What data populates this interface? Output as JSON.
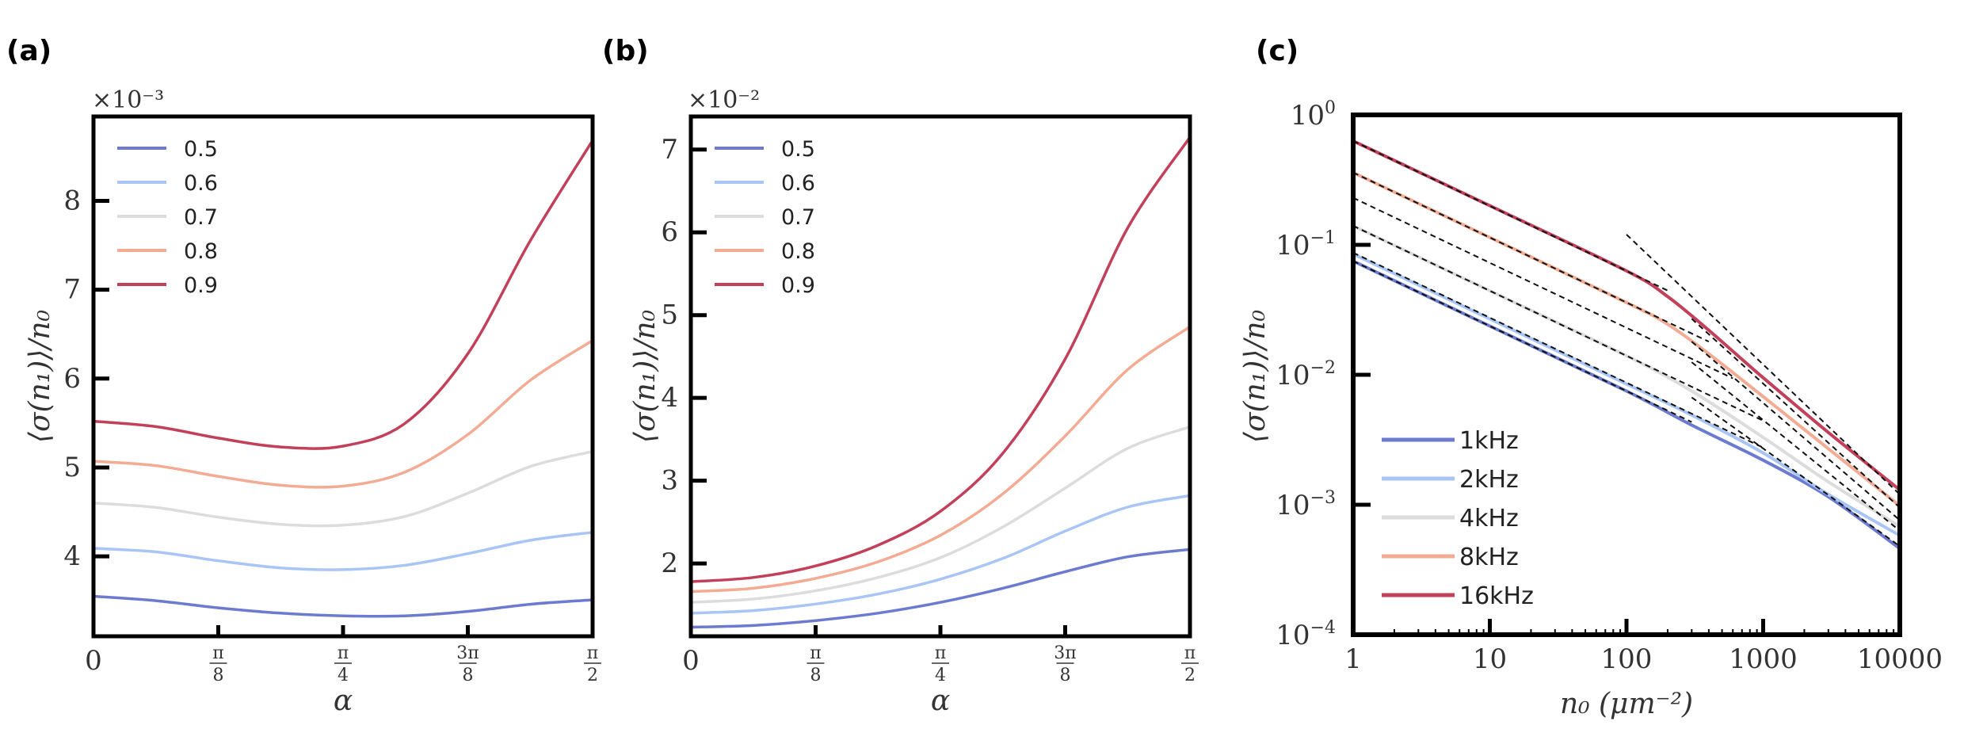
{
  "chart_data": [
    {
      "panel": "(a)",
      "type": "line",
      "xlabel": "α",
      "ylabel": "⟨σ(n₁)⟩/n₀",
      "offset_label": "×10⁻³",
      "xlim": [
        0,
        1.5708
      ],
      "ylim": [
        3.1,
        8.95
      ],
      "x_ticks": [
        {
          "value": 0,
          "label": "0"
        },
        {
          "value": 0.3927,
          "num": "π",
          "den": "8"
        },
        {
          "value": 0.7854,
          "num": "π",
          "den": "4"
        },
        {
          "value": 1.1781,
          "num": "3π",
          "den": "8"
        },
        {
          "value": 1.5708,
          "num": "π",
          "den": "2"
        }
      ],
      "y_ticks": [
        4,
        5,
        6,
        7,
        8
      ],
      "x": [
        0,
        0.1963,
        0.3927,
        0.589,
        0.7854,
        0.9817,
        1.1781,
        1.3744,
        1.5708
      ],
      "series": [
        {
          "name": "0.5",
          "color": "#6c7bd0",
          "values": [
            3.55,
            3.5,
            3.42,
            3.36,
            3.33,
            3.33,
            3.38,
            3.46,
            3.51
          ]
        },
        {
          "name": "0.6",
          "color": "#a9c5f5",
          "values": [
            4.09,
            4.05,
            3.95,
            3.87,
            3.85,
            3.9,
            4.03,
            4.18,
            4.27
          ]
        },
        {
          "name": "0.7",
          "color": "#dcdcdc",
          "values": [
            4.6,
            4.55,
            4.44,
            4.36,
            4.35,
            4.45,
            4.71,
            5.01,
            5.18
          ]
        },
        {
          "name": "0.8",
          "color": "#f4ab93",
          "values": [
            5.07,
            5.02,
            4.9,
            4.8,
            4.79,
            4.95,
            5.37,
            5.98,
            6.43
          ]
        },
        {
          "name": "0.9",
          "color": "#c2405a",
          "values": [
            5.52,
            5.46,
            5.33,
            5.23,
            5.24,
            5.5,
            6.28,
            7.55,
            8.68
          ]
        }
      ]
    },
    {
      "panel": "(b)",
      "type": "line",
      "xlabel": "α",
      "ylabel": "⟨σ(n₁)⟩/n₀",
      "offset_label": "×10⁻²",
      "xlim": [
        0,
        1.5708
      ],
      "ylim": [
        1.12,
        7.4
      ],
      "x_ticks": [
        {
          "value": 0,
          "label": "0"
        },
        {
          "value": 0.3927,
          "num": "π",
          "den": "8"
        },
        {
          "value": 0.7854,
          "num": "π",
          "den": "4"
        },
        {
          "value": 1.1781,
          "num": "3π",
          "den": "8"
        },
        {
          "value": 1.5708,
          "num": "π",
          "den": "2"
        }
      ],
      "y_ticks": [
        2,
        3,
        4,
        5,
        6,
        7
      ],
      "x": [
        0,
        0.1963,
        0.3927,
        0.589,
        0.7854,
        0.9817,
        1.1781,
        1.3744,
        1.5708
      ],
      "series": [
        {
          "name": "0.5",
          "color": "#6c7bd0",
          "values": [
            1.23,
            1.25,
            1.31,
            1.4,
            1.53,
            1.7,
            1.9,
            2.08,
            2.17
          ]
        },
        {
          "name": "0.6",
          "color": "#a9c5f5",
          "values": [
            1.4,
            1.43,
            1.51,
            1.63,
            1.81,
            2.06,
            2.39,
            2.68,
            2.82
          ]
        },
        {
          "name": "0.7",
          "color": "#dcdcdc",
          "values": [
            1.53,
            1.57,
            1.67,
            1.83,
            2.07,
            2.44,
            2.91,
            3.39,
            3.65
          ]
        },
        {
          "name": "0.8",
          "color": "#f4ab93",
          "values": [
            1.66,
            1.7,
            1.82,
            2.02,
            2.34,
            2.84,
            3.54,
            4.34,
            4.86
          ]
        },
        {
          "name": "0.9",
          "color": "#c2405a",
          "values": [
            1.78,
            1.83,
            1.97,
            2.22,
            2.63,
            3.33,
            4.47,
            6.05,
            7.15
          ]
        }
      ]
    },
    {
      "panel": "(c)",
      "type": "line",
      "xscale": "log",
      "yscale": "log",
      "xlabel": "n₀  (μm⁻²)",
      "ylabel": "⟨σ(n₁)⟩/n₀",
      "xlim": [
        1,
        10000
      ],
      "ylim": [
        0.0001,
        1
      ],
      "x_ticks": [
        {
          "value": 1,
          "label": "1"
        },
        {
          "value": 10,
          "label": "10"
        },
        {
          "value": 100,
          "label": "100"
        },
        {
          "value": 1000,
          "label": "1000"
        },
        {
          "value": 10000,
          "label": "10000"
        }
      ],
      "y_ticks": [
        {
          "value": 1,
          "mant": "10",
          "exp": "0"
        },
        {
          "value": 0.1,
          "mant": "10",
          "exp": "−1"
        },
        {
          "value": 0.01,
          "mant": "10",
          "exp": "−2"
        },
        {
          "value": 0.001,
          "mant": "10",
          "exp": "−3"
        },
        {
          "value": 0.0001,
          "mant": "10",
          "exp": "−4"
        }
      ],
      "series": [
        {
          "name": "1kHz",
          "color": "#6c7bd0",
          "x": [
            1,
            10,
            100,
            300,
            1000,
            3000,
            10000
          ],
          "y": [
            0.075,
            0.0237,
            0.0075,
            0.0041,
            0.0022,
            0.00115,
            0.00046
          ]
        },
        {
          "name": "2kHz",
          "color": "#a9c5f5",
          "x": [
            1,
            10,
            100,
            300,
            1000,
            3000,
            10000
          ],
          "y": [
            0.085,
            0.0269,
            0.0085,
            0.0049,
            0.0025,
            0.0012,
            0.00058
          ]
        },
        {
          "name": "4kHz",
          "color": "#dcdcdc",
          "x": [
            1,
            10,
            100,
            300,
            1000,
            3000,
            10000
          ],
          "y": [
            0.14,
            0.0443,
            0.014,
            0.0075,
            0.0033,
            0.0015,
            0.00068
          ]
        },
        {
          "name": "8kHz",
          "color": "#f4ab93",
          "x": [
            1,
            10,
            100,
            200,
            400,
            1000,
            3000,
            10000
          ],
          "y": [
            0.36,
            0.114,
            0.036,
            0.0245,
            0.0145,
            0.0068,
            0.0027,
            0.00098
          ]
        },
        {
          "name": "16kHz",
          "color": "#c2405a",
          "x": [
            1,
            10,
            100,
            200,
            400,
            1000,
            3000,
            10000
          ],
          "y": [
            0.63,
            0.2,
            0.063,
            0.04,
            0.022,
            0.0095,
            0.0036,
            0.0013
          ]
        }
      ],
      "reference_lines": [
        {
          "x": [
            1,
            300
          ],
          "y": [
            0.075,
            0.00433
          ]
        },
        {
          "x": [
            1,
            1000
          ],
          "y": [
            0.087,
            0.00275
          ]
        },
        {
          "x": [
            1,
            1000
          ],
          "y": [
            0.14,
            0.00443
          ]
        },
        {
          "x": [
            1,
            600
          ],
          "y": [
            0.23,
            0.00939
          ]
        },
        {
          "x": [
            1,
            400
          ],
          "y": [
            0.36,
            0.018
          ]
        },
        {
          "x": [
            1,
            200
          ],
          "y": [
            0.63,
            0.0445
          ]
        },
        {
          "x": [
            300,
            10000
          ],
          "y": [
            0.0067,
            0.00048
          ]
        },
        {
          "x": [
            300,
            10000
          ],
          "y": [
            0.0125,
            0.00063
          ]
        },
        {
          "x": [
            300,
            10000
          ],
          "y": [
            0.018,
            0.00076
          ]
        },
        {
          "x": [
            300,
            10000
          ],
          "y": [
            0.027,
            0.00095
          ]
        },
        {
          "x": [
            100,
            10000
          ],
          "y": [
            0.12,
            0.0012
          ]
        }
      ]
    }
  ]
}
